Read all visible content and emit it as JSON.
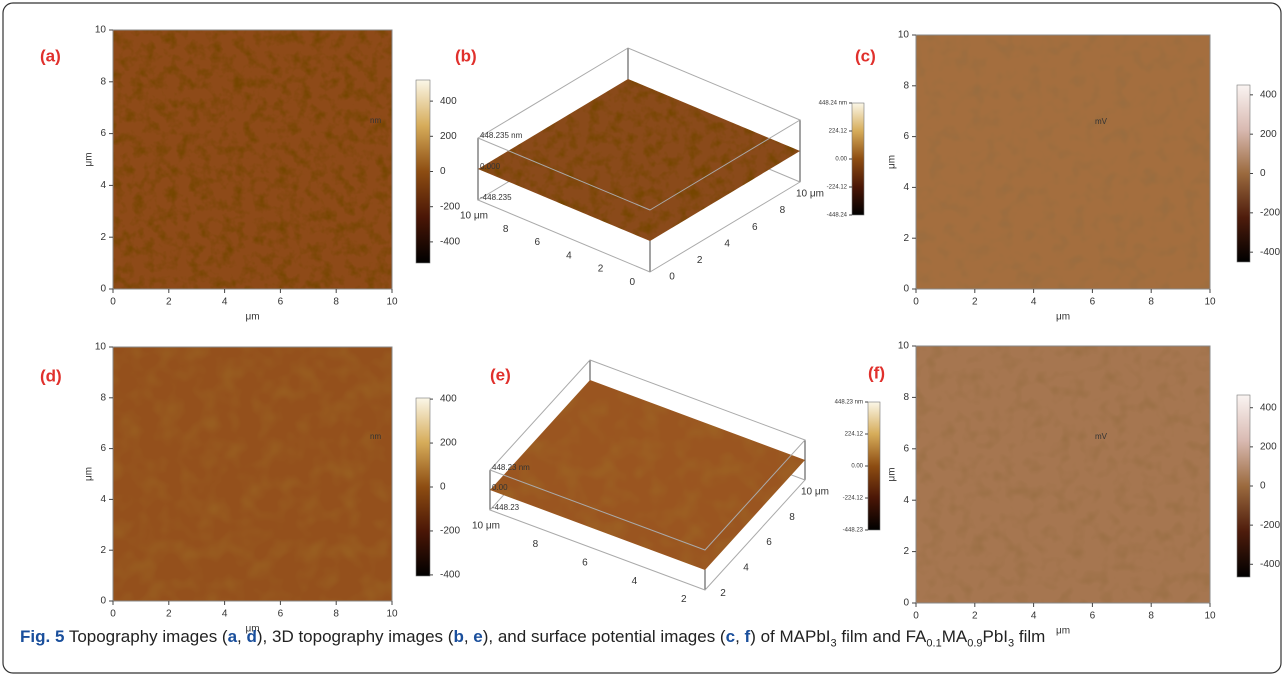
{
  "figure": {
    "panels": [
      {
        "type": "map2d",
        "label": "(a)",
        "xlim": [
          0,
          10
        ],
        "ylim": [
          0,
          10
        ],
        "xticks": [
          0,
          2,
          4,
          6,
          8,
          10
        ],
        "yticks": [
          0,
          2,
          4,
          6,
          8,
          10
        ],
        "xlabel": "μm",
        "ylabel": "μm",
        "colorbar_lim": [
          -520,
          520
        ],
        "colorbar_ticks": [
          400,
          200,
          0,
          -200,
          -400
        ],
        "unit": "nm"
      },
      {
        "type": "map3d",
        "label": "(b)",
        "z_labels": [
          "448.235 nm",
          "0.000",
          "-448.235"
        ],
        "left_axis": [
          "10 μm",
          "8",
          "6",
          "4",
          "2",
          "0"
        ],
        "right_axis": [
          "0",
          "2",
          "4",
          "6",
          "8",
          "10 μm"
        ],
        "colorbar_labels": [
          "448.24 nm",
          "224.12",
          "0.00",
          "-224.12",
          "-448.24"
        ]
      },
      {
        "type": "map2d",
        "label": "(c)",
        "xlim": [
          0,
          10
        ],
        "ylim": [
          0,
          10
        ],
        "xticks": [
          0,
          2,
          4,
          6,
          8,
          10
        ],
        "yticks": [
          0,
          2,
          4,
          6,
          8,
          10
        ],
        "xlabel": "μm",
        "ylabel": "μm",
        "colorbar_lim": [
          -450,
          450
        ],
        "colorbar_ticks": [
          400,
          200,
          0,
          -200,
          -400
        ],
        "unit": "mV"
      },
      {
        "type": "map2d",
        "label": "(d)",
        "xlim": [
          0,
          10
        ],
        "ylim": [
          0,
          10
        ],
        "xticks": [
          0,
          2,
          4,
          6,
          8,
          10
        ],
        "yticks": [
          0,
          2,
          4,
          6,
          8,
          10
        ],
        "xlabel": "μm",
        "ylabel": "μm",
        "colorbar_lim": [
          -405,
          405
        ],
        "colorbar_ticks": [
          400,
          200,
          0,
          -200,
          -400
        ],
        "unit": "nm"
      },
      {
        "type": "map3d",
        "label": "(e)",
        "z_labels": [
          "448.23 nm",
          "0.00",
          "-448.23"
        ],
        "left_axis": [
          "10 μm",
          "8",
          "6",
          "4",
          "2"
        ],
        "right_axis": [
          "2",
          "4",
          "6",
          "8",
          "10 μm"
        ],
        "colorbar_labels": [
          "448.23 nm",
          "224.12",
          "0.00",
          "-224.12",
          "-448.23"
        ]
      },
      {
        "type": "map2d",
        "label": "(f)",
        "xlim": [
          0,
          10
        ],
        "ylim": [
          0,
          10
        ],
        "xticks": [
          0,
          2,
          4,
          6,
          8,
          10
        ],
        "yticks": [
          0,
          2,
          4,
          6,
          8,
          10
        ],
        "xlabel": "μm",
        "ylabel": "μm",
        "colorbar_lim": [
          -465,
          465
        ],
        "colorbar_ticks": [
          400,
          200,
          0,
          -200,
          -400
        ],
        "unit": "mV"
      }
    ],
    "caption": [
      {
        "text": "Fig. 5",
        "bold": true
      },
      {
        "text": " Topography images ("
      },
      {
        "text": "a",
        "bold": true
      },
      {
        "text": ", "
      },
      {
        "text": "d",
        "bold": true
      },
      {
        "text": "), 3D topography images ("
      },
      {
        "text": "b",
        "bold": true
      },
      {
        "text": ", "
      },
      {
        "text": "e",
        "bold": true
      },
      {
        "text": "), and surface potential images ("
      },
      {
        "text": "c",
        "bold": true
      },
      {
        "text": ", "
      },
      {
        "text": "f",
        "bold": true
      },
      {
        "text": ") of MAPbI"
      },
      {
        "text": "3",
        "sub": true
      },
      {
        "text": " film and FA"
      },
      {
        "text": "0.1",
        "sub": true
      },
      {
        "text": "MA"
      },
      {
        "text": "0.9",
        "sub": true
      },
      {
        "text": "PbI"
      },
      {
        "text": "3",
        "sub": true
      },
      {
        "text": " film"
      }
    ]
  }
}
